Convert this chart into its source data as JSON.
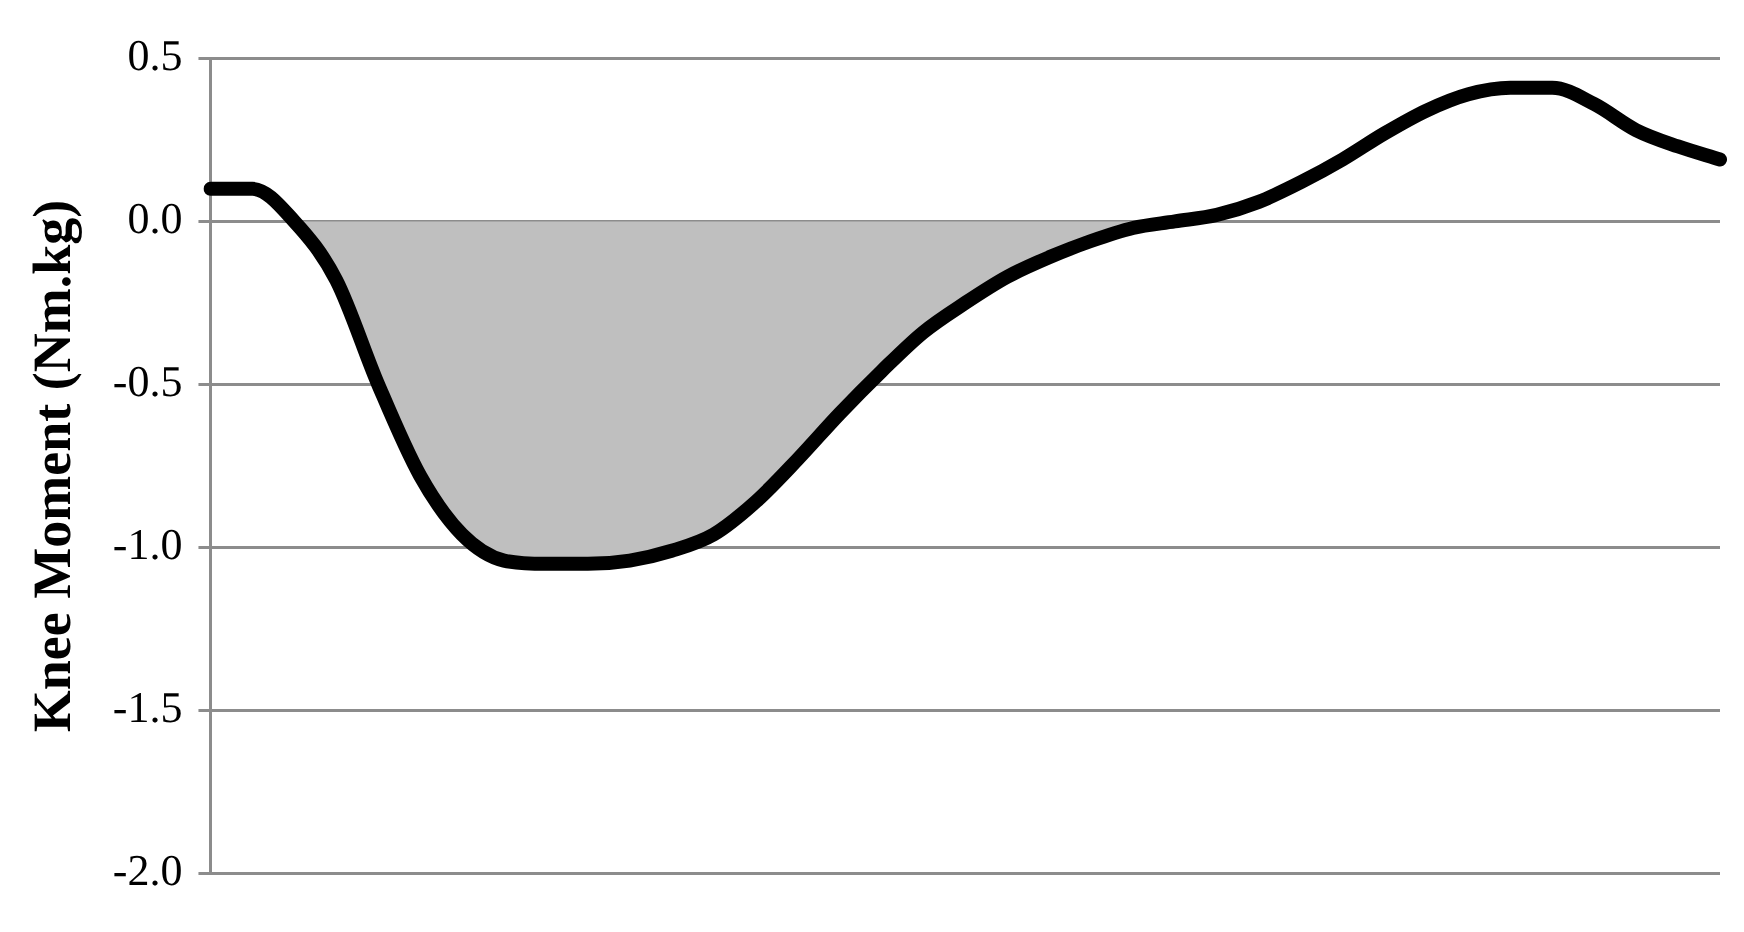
{
  "chart_data": {
    "type": "line",
    "ylabel": "Knee Moment (Nm.kg)",
    "categories": [
      null,
      null,
      null,
      null,
      null,
      null,
      null,
      null,
      null,
      null,
      null,
      null,
      null,
      null,
      null,
      null,
      null,
      null,
      null,
      null,
      null,
      null,
      null,
      null,
      null,
      null,
      null,
      null,
      null,
      null,
      null,
      null,
      null,
      null,
      null,
      null,
      null
    ],
    "series": [
      {
        "type": "area",
        "color": "#bfbfbf",
        "values": [
          null,
          null,
          0.0,
          -0.18,
          -0.5,
          -0.78,
          -0.96,
          -1.04,
          -1.05,
          -1.05,
          -1.04,
          -1.01,
          -0.96,
          -0.86,
          -0.73,
          -0.59,
          -0.46,
          -0.34,
          -0.25,
          -0.17,
          -0.11,
          -0.06,
          -0.02,
          0.0,
          null,
          null,
          null,
          null,
          null,
          null,
          null,
          null,
          null,
          null,
          null,
          null,
          null
        ]
      },
      {
        "color": "#000000",
        "values": [
          0.1,
          0.1,
          0.0,
          -0.18,
          -0.5,
          -0.78,
          -0.96,
          -1.04,
          -1.05,
          -1.05,
          -1.04,
          -1.01,
          -0.96,
          -0.86,
          -0.73,
          -0.59,
          -0.46,
          -0.34,
          -0.25,
          -0.17,
          -0.11,
          -0.06,
          -0.02,
          0.0,
          0.02,
          0.06,
          0.12,
          0.19,
          0.27,
          0.34,
          0.39,
          0.41,
          0.41,
          0.36,
          0.28,
          0.23,
          0.19
        ]
      }
    ],
    "ylim": [
      -2.0,
      0.5
    ],
    "yticks": [
      {
        "value": -2.0,
        "label": "-2.0"
      },
      {
        "value": -1.5,
        "label": "-1.5"
      },
      {
        "value": -1.0,
        "label": "-1.0"
      },
      {
        "value": -0.5,
        "label": "-0.5"
      },
      {
        "value": 0.0,
        "label": "0.0"
      },
      {
        "value": 0.5,
        "label": "0.5"
      }
    ],
    "grid": "y",
    "legend": false,
    "tick_labels": "y",
    "marker": "none",
    "line_style": "solid"
  }
}
